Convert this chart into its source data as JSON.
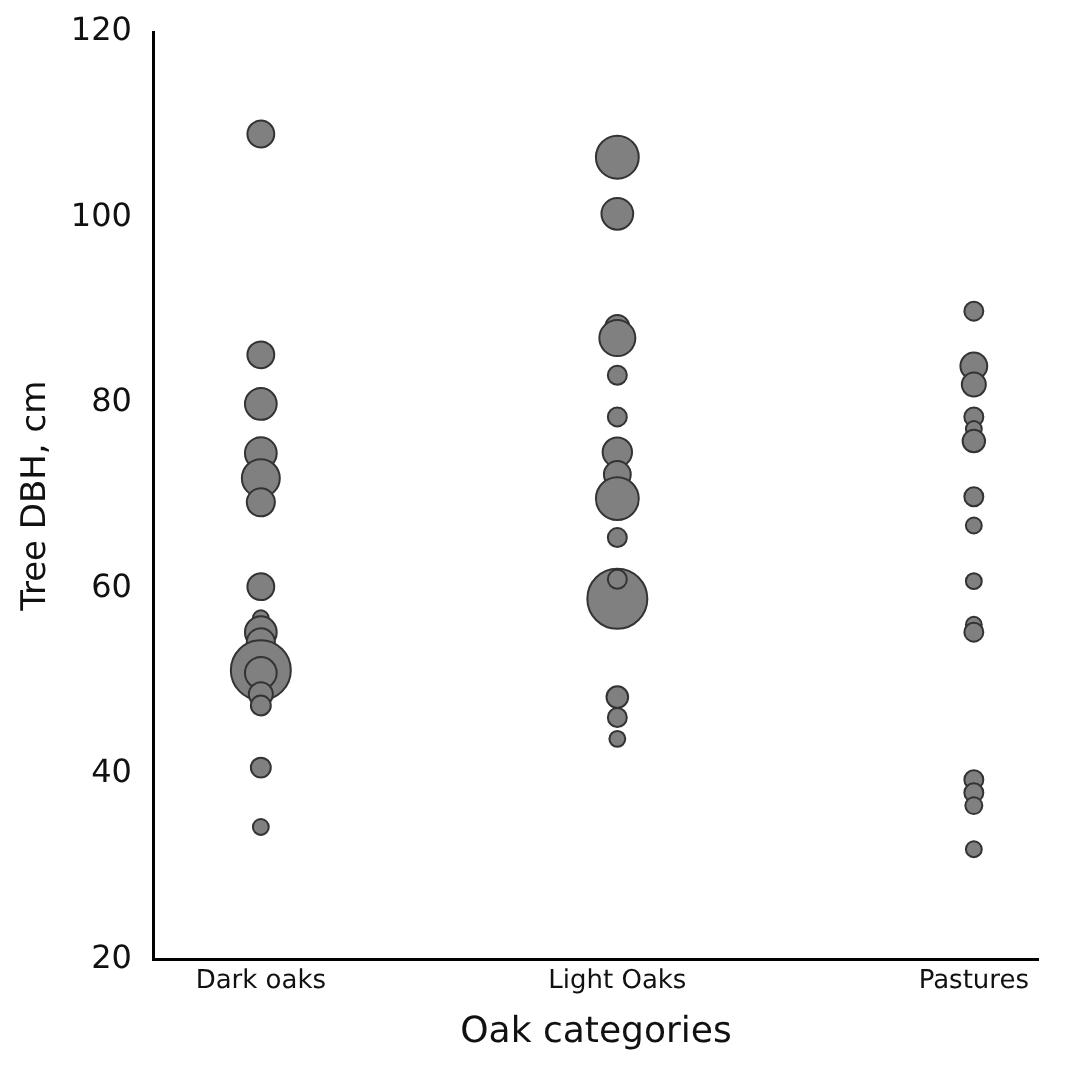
{
  "chart_data": {
    "type": "bubble",
    "xlabel": "Oak categories",
    "ylabel": "Tree DBH, cm",
    "categories": [
      "Dark oaks",
      "Light Oaks",
      "Pastures"
    ],
    "ylim": [
      20,
      120
    ],
    "yticks": [
      20,
      40,
      60,
      80,
      100,
      120
    ],
    "grid": false,
    "legend": false,
    "series": [
      {
        "color": "#808080",
        "x": [
          "Dark oaks",
          "Dark oaks",
          "Dark oaks",
          "Dark oaks",
          "Dark oaks",
          "Dark oaks",
          "Dark oaks",
          "Dark oaks",
          "Dark oaks",
          "Dark oaks",
          "Dark oaks",
          "Dark oaks",
          "Dark oaks",
          "Dark oaks",
          "Dark oaks",
          "Dark oaks",
          "Light Oaks",
          "Light Oaks",
          "Light Oaks",
          "Light Oaks",
          "Light Oaks",
          "Light Oaks",
          "Light Oaks",
          "Light Oaks",
          "Light Oaks",
          "Light Oaks",
          "Light Oaks",
          "Light Oaks",
          "Light Oaks",
          "Light Oaks",
          "Light Oaks",
          "Pastures",
          "Pastures",
          "Pastures",
          "Pastures",
          "Pastures",
          "Pastures",
          "Pastures",
          "Pastures",
          "Pastures",
          "Pastures",
          "Pastures",
          "Pastures",
          "Pastures",
          "Pastures",
          "Pastures"
        ],
        "values": [
          109,
          85.2,
          79.9,
          74.6,
          71.9,
          69.3,
          60.2,
          56.8,
          55.3,
          54.2,
          51.2,
          50.9,
          48.6,
          47.4,
          40.7,
          34.3,
          106.5,
          100.4,
          88.2,
          87,
          83,
          78.5,
          74.7,
          72.3,
          69.7,
          65.5,
          58.9,
          61,
          48.3,
          46.1,
          43.8,
          89.9,
          84,
          82,
          78.5,
          77.2,
          75.9,
          69.9,
          66.8,
          60.8,
          56.1,
          55.3,
          39.4,
          38,
          36.6,
          31.9
        ],
        "sizes": [
          0.2,
          0.2,
          0.28,
          0.28,
          0.4,
          0.22,
          0.2,
          0.07,
          0.28,
          0.22,
          1,
          0.28,
          0.16,
          0.11,
          0.11,
          0.07,
          0.51,
          0.28,
          0.16,
          0.36,
          0.1,
          0.1,
          0.24,
          0.2,
          0.51,
          0.1,
          1,
          0.1,
          0.13,
          0.1,
          0.07,
          0.1,
          0.2,
          0.16,
          0.1,
          0.07,
          0.14,
          0.1,
          0.07,
          0.07,
          0.07,
          0.1,
          0.1,
          0.1,
          0.08,
          0.07
        ]
      }
    ]
  }
}
